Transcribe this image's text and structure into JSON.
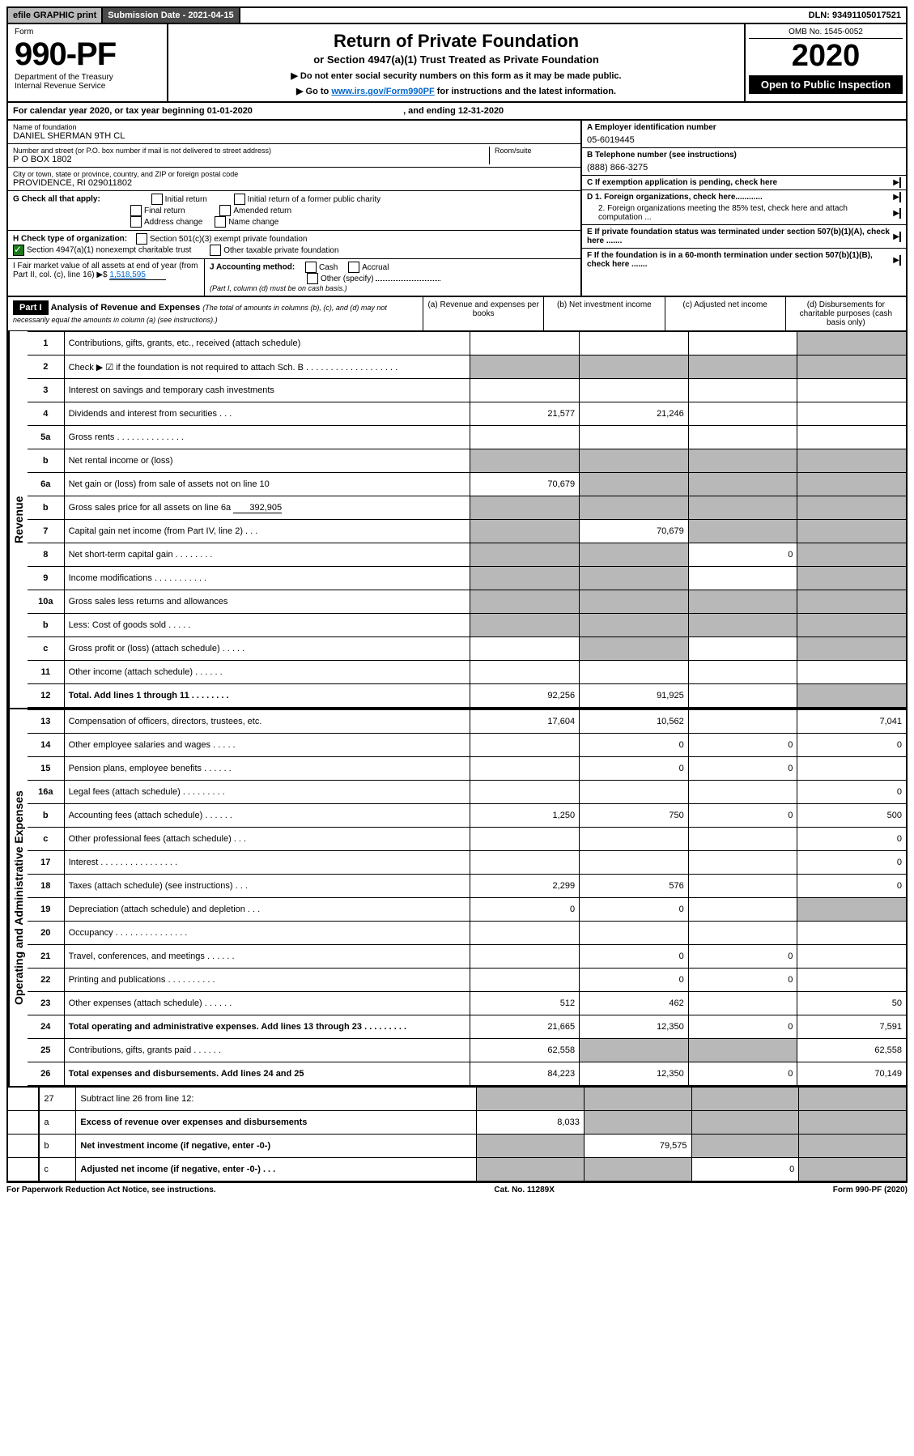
{
  "topbar": {
    "efile": "efile GRAPHIC print",
    "submission_label": "Submission Date - 2021-04-15",
    "dln": "DLN: 93491105017521"
  },
  "header": {
    "form_label": "Form",
    "form_no": "990-PF",
    "dept": "Department of the Treasury",
    "irs": "Internal Revenue Service",
    "title": "Return of Private Foundation",
    "subtitle": "or Section 4947(a)(1) Trust Treated as Private Foundation",
    "note1": "▶ Do not enter social security numbers on this form as it may be made public.",
    "note2_pre": "▶ Go to ",
    "note2_link": "www.irs.gov/Form990PF",
    "note2_post": " for instructions and the latest information.",
    "omb": "OMB No. 1545-0052",
    "year": "2020",
    "open": "Open to Public Inspection"
  },
  "calendar": {
    "text_pre": "For calendar year 2020, or tax year beginning ",
    "begin": "01-01-2020",
    "mid": " , and ending ",
    "end": "12-31-2020"
  },
  "info": {
    "name_label": "Name of foundation",
    "name": "DANIEL SHERMAN 9TH CL",
    "addr_label": "Number and street (or P.O. box number if mail is not delivered to street address)",
    "addr": "P O BOX 1802",
    "room_label": "Room/suite",
    "city_label": "City or town, state or province, country, and ZIP or foreign postal code",
    "city": "PROVIDENCE, RI  029011802",
    "a_label": "A Employer identification number",
    "a_val": "05-6019445",
    "b_label": "B Telephone number (see instructions)",
    "b_val": "(888) 866-3275",
    "c_label": "C If exemption application is pending, check here",
    "d1": "D 1. Foreign organizations, check here............",
    "d2": "2. Foreign organizations meeting the 85% test, check here and attach computation ...",
    "e": "E  If private foundation status was terminated under section 507(b)(1)(A), check here .......",
    "f": "F  If the foundation is in a 60-month termination under section 507(b)(1)(B), check here .......",
    "g_label": "G Check all that apply:",
    "g_opts": [
      "Initial return",
      "Initial return of a former public charity",
      "Final return",
      "Amended return",
      "Address change",
      "Name change"
    ],
    "h_label": "H Check type of organization:",
    "h1": "Section 501(c)(3) exempt private foundation",
    "h2": "Section 4947(a)(1) nonexempt charitable trust",
    "h3": "Other taxable private foundation",
    "i_label": "I Fair market value of all assets at end of year (from Part II, col. (c), line 16) ▶$ ",
    "i_val": "1,518,595",
    "j_label": "J Accounting method:",
    "j_opts": [
      "Cash",
      "Accrual"
    ],
    "j_other": "Other (specify)",
    "j_note": "(Part I, column (d) must be on cash basis.)"
  },
  "part1": {
    "label": "Part I",
    "title": "Analysis of Revenue and Expenses",
    "title_note": "(The total of amounts in columns (b), (c), and (d) may not necessarily equal the amounts in column (a) (see instructions).)",
    "cols": {
      "a": "(a)  Revenue and expenses per books",
      "b": "(b)  Net investment income",
      "c": "(c)  Adjusted net income",
      "d": "(d)  Disbursements for charitable purposes (cash basis only)"
    }
  },
  "sections": {
    "revenue": "Revenue",
    "expenses": "Operating and Administrative Expenses"
  },
  "lines": {
    "1": {
      "n": "1",
      "desc": "Contributions, gifts, grants, etc., received (attach schedule)",
      "a": "",
      "b": "",
      "c": "",
      "d": "shade"
    },
    "2": {
      "n": "2",
      "desc": "Check ▶ ☑ if the foundation is not required to attach Sch. B   . . . . . . . . . . . . . . . . . . .",
      "shadeall": true
    },
    "3": {
      "n": "3",
      "desc": "Interest on savings and temporary cash investments"
    },
    "4": {
      "n": "4",
      "desc": "Dividends and interest from securities   . . .",
      "a": "21,577",
      "b": "21,246"
    },
    "5a": {
      "n": "5a",
      "desc": "Gross rents   . . . . . . . . . . . . . ."
    },
    "5b": {
      "n": "b",
      "desc": "Net rental income or (loss)  ",
      "shadeall": true
    },
    "6a": {
      "n": "6a",
      "desc": "Net gain or (loss) from sale of assets not on line 10",
      "a": "70,679",
      "shadebcd": true
    },
    "6b": {
      "n": "b",
      "desc": "Gross sales price for all assets on line 6a",
      "inline": "392,905",
      "shadeall": true
    },
    "7": {
      "n": "7",
      "desc": "Capital gain net income (from Part IV, line 2)   . . .",
      "b": "70,679",
      "shadea": true,
      "shadecd": true
    },
    "8": {
      "n": "8",
      "desc": "Net short-term capital gain   . . . . . . . .",
      "c": "0",
      "shadeab": true,
      "shaded": true
    },
    "9": {
      "n": "9",
      "desc": "Income modifications . . . . . . . . . . .",
      "shadeab": true,
      "shaded": true
    },
    "10a": {
      "n": "10a",
      "desc": "Gross sales less returns and allowances",
      "shadeall": true
    },
    "10b": {
      "n": "b",
      "desc": "Less: Cost of goods sold   . . . . .",
      "shadeall": true
    },
    "10c": {
      "n": "c",
      "desc": "Gross profit or (loss) (attach schedule)   . . . . .",
      "shadeb": true,
      "shaded": true
    },
    "11": {
      "n": "11",
      "desc": "Other income (attach schedule)   . . . . . ."
    },
    "12": {
      "n": "12",
      "desc": "Total. Add lines 1 through 11   . . . . . . . .",
      "a": "92,256",
      "b": "91,925",
      "bold": true,
      "shaded": true
    },
    "13": {
      "n": "13",
      "desc": "Compensation of officers, directors, trustees, etc.",
      "a": "17,604",
      "b": "10,562",
      "d": "7,041"
    },
    "14": {
      "n": "14",
      "desc": "Other employee salaries and wages   . . . . .",
      "b": "0",
      "c": "0",
      "d": "0"
    },
    "15": {
      "n": "15",
      "desc": "Pension plans, employee benefits . . . . . .",
      "b": "0",
      "c": "0"
    },
    "16a": {
      "n": "16a",
      "desc": "Legal fees (attach schedule) . . . . . . . . .",
      "d": "0"
    },
    "16b": {
      "n": "b",
      "desc": "Accounting fees (attach schedule) . . . . . .",
      "a": "1,250",
      "b": "750",
      "c": "0",
      "d": "500"
    },
    "16c": {
      "n": "c",
      "desc": "Other professional fees (attach schedule)   . . .",
      "d": "0"
    },
    "17": {
      "n": "17",
      "desc": "Interest . . . . . . . . . . . . . . . .",
      "d": "0"
    },
    "18": {
      "n": "18",
      "desc": "Taxes (attach schedule) (see instructions)   . . .",
      "a": "2,299",
      "b": "576",
      "d": "0"
    },
    "19": {
      "n": "19",
      "desc": "Depreciation (attach schedule) and depletion   . . .",
      "a": "0",
      "b": "0",
      "shaded": true
    },
    "20": {
      "n": "20",
      "desc": "Occupancy . . . . . . . . . . . . . . ."
    },
    "21": {
      "n": "21",
      "desc": "Travel, conferences, and meetings . . . . . .",
      "b": "0",
      "c": "0"
    },
    "22": {
      "n": "22",
      "desc": "Printing and publications . . . . . . . . . .",
      "b": "0",
      "c": "0"
    },
    "23": {
      "n": "23",
      "desc": "Other expenses (attach schedule) . . . . . .",
      "a": "512",
      "b": "462",
      "d": "50"
    },
    "24": {
      "n": "24",
      "desc": "Total operating and administrative expenses. Add lines 13 through 23   . . . . . . . . .",
      "a": "21,665",
      "b": "12,350",
      "c": "0",
      "d": "7,591",
      "bold": true
    },
    "25": {
      "n": "25",
      "desc": "Contributions, gifts, grants paid   . . . . . .",
      "a": "62,558",
      "d": "62,558",
      "shadebc": true
    },
    "26": {
      "n": "26",
      "desc": "Total expenses and disbursements. Add lines 24 and 25",
      "a": "84,223",
      "b": "12,350",
      "c": "0",
      "d": "70,149",
      "bold": true
    },
    "27": {
      "n": "27",
      "desc": "Subtract line 26 from line 12:",
      "shadeall": true
    },
    "27a": {
      "n": "a",
      "desc": "Excess of revenue over expenses and disbursements",
      "a": "8,033",
      "bold": true,
      "shadebcd": true
    },
    "27b": {
      "n": "b",
      "desc": "Net investment income (if negative, enter -0-)",
      "b": "79,575",
      "bold": true,
      "shadea": true,
      "shadecd": true
    },
    "27c": {
      "n": "c",
      "desc": "Adjusted net income (if negative, enter -0-)   . . .",
      "c": "0",
      "bold": true,
      "shadeab": true,
      "shaded": true
    }
  },
  "footer": {
    "left": "For Paperwork Reduction Act Notice, see instructions.",
    "mid": "Cat. No. 11289X",
    "right": "Form 990-PF (2020)"
  }
}
